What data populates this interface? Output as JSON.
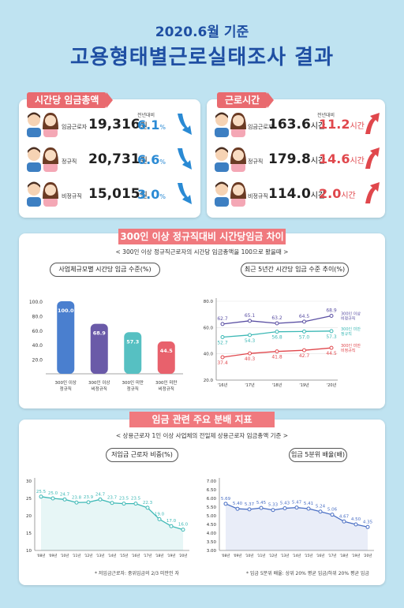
{
  "header": {
    "line1": "2020.6월 기준",
    "line2": "고용형태별근로실태조사 결과"
  },
  "wage_panel": {
    "tag": "시간당 임금총액",
    "compare_label": "전년대비",
    "rows": [
      {
        "label": "임금근로자",
        "value": "19,316",
        "unit": "원",
        "pct": "6.1",
        "pct_unit": "%"
      },
      {
        "label": "정규직",
        "value": "20,731",
        "unit": "원",
        "pct": "6.6",
        "pct_unit": "%"
      },
      {
        "label": "비정규직",
        "value": "15,015",
        "unit": "원",
        "pct": "3.0",
        "pct_unit": "%"
      }
    ]
  },
  "hours_panel": {
    "tag": "근로시간",
    "compare_label": "전년대비",
    "rows": [
      {
        "label": "임금근로자",
        "value": "163.6",
        "unit": "시간",
        "diff": "11.2",
        "diff_unit": "시간"
      },
      {
        "label": "정규직",
        "value": "179.8",
        "unit": "시간",
        "diff": "14.6",
        "diff_unit": "시간"
      },
      {
        "label": "비정규직",
        "value": "114.0",
        "unit": "시간",
        "diff": "2.0",
        "diff_unit": "시간"
      }
    ]
  },
  "section1": {
    "banner": "300인 이상 정규직대비 시간당임금 차이",
    "subtitle": "< 300인 이상 정규직근로자의 시간당 임금총액을 100으로 봤을때 >",
    "left_pill": "사업체규모별 시간당 임금 수준(%)",
    "right_pill": "최근 5년간 시간당 임금 수준 추이(%)"
  },
  "section2": {
    "banner": "임금 관련 주요 분배 지표",
    "subtitle": "< 상용근로자 1인 이상 사업체의 전일제 상용근로자 임금총액 기준 >",
    "left_pill": "저임금 근로자 비중(%)",
    "right_pill": "임금 5분위 배율(배)",
    "left_note": "* 저임금근로자: 중위임금의 2/3 미만인 자",
    "right_note": "* 임금 5분위 배율: 상위 20% 평균 임금/하위 20% 평균 임금"
  },
  "colors": {
    "red": "#e0474c",
    "blue": "#2a8ad4",
    "banner": "#f0797e",
    "title": "#1f4fa3",
    "bg": "#bfe3f1"
  },
  "chart_data": [
    {
      "type": "bar",
      "title": "사업체규모별 시간당 임금 수준(%)",
      "categories": [
        "300인 이상 정규직",
        "300인 이상 비정규직",
        "300인 미만 정규직",
        "300인 미만 비정규직"
      ],
      "values": [
        100.0,
        68.9,
        57.3,
        44.5
      ],
      "value_labels": [
        "100.0",
        "68.9",
        "57.3",
        "44.5"
      ],
      "yticks": [
        "100.0",
        "80.0",
        "60.0",
        "40.0",
        "20.0"
      ],
      "ylim": [
        0,
        100
      ],
      "colors": [
        "#4a7fcf",
        "#6a5aa8",
        "#56c0c2",
        "#e8616c"
      ]
    },
    {
      "type": "line",
      "title": "최근 5년간 시간당 임금 수준 추이(%)",
      "x": [
        "'16년",
        "'17년",
        "'18년",
        "'19년",
        "'20년"
      ],
      "yticks": [
        "80.0",
        "60.0",
        "40.0",
        "20.0"
      ],
      "ylim": [
        20,
        80
      ],
      "series": [
        {
          "name": "300인 이상 비정규직",
          "values": [
            62.7,
            65.1,
            63.2,
            64.5,
            68.9
          ],
          "labels": [
            "62.7",
            "65.1",
            "63.2",
            "64.5",
            "68.9"
          ],
          "color": "#5a4fa3"
        },
        {
          "name": "300인 미만 정규직",
          "values": [
            52.7,
            54.3,
            56.8,
            57.0,
            57.3
          ],
          "labels": [
            "52.7",
            "54.3",
            "56.8",
            "57.0",
            "57.3"
          ],
          "color": "#3cb8b5"
        },
        {
          "name": "300인 미만 비정규직",
          "values": [
            37.4,
            40.3,
            41.8,
            42.7,
            44.5
          ],
          "labels": [
            "37.4",
            "40.3",
            "41.8",
            "42.7",
            "44.5"
          ],
          "color": "#e0474c"
        }
      ]
    },
    {
      "type": "line",
      "title": "저임금 근로자 비중(%)",
      "x": [
        "'08년",
        "'09년",
        "'10년",
        "'11년",
        "'12년",
        "'13년",
        "'14년",
        "'15년",
        "'16년",
        "'17년",
        "'18년",
        "'19년",
        "'20년"
      ],
      "yticks": [
        "30",
        "25",
        "20",
        "15",
        "10"
      ],
      "ylim": [
        10,
        30
      ],
      "series": [
        {
          "values": [
            25.5,
            25.0,
            24.7,
            23.8,
            23.9,
            24.7,
            23.7,
            23.5,
            23.5,
            22.3,
            19.0,
            17.0,
            16.0
          ],
          "labels": [
            "25.5",
            "25.0",
            "24.7",
            "23.8",
            "23.9",
            "24.7",
            "23.7",
            "23.5",
            "23.5",
            "22.3",
            "19.0",
            "17.0",
            "16.0"
          ],
          "color": "#3cb8b5"
        }
      ]
    },
    {
      "type": "line",
      "title": "임금 5분위 배율(배)",
      "x": [
        "'08년",
        "'09년",
        "'10년",
        "'11년",
        "'12년",
        "'13년",
        "'14년",
        "'15년",
        "'16년",
        "'17년",
        "'18년",
        "'19년",
        "'20년"
      ],
      "yticks": [
        "7.00",
        "6.50",
        "6.00",
        "5.50",
        "5.00",
        "4.50",
        "4.00",
        "3.50",
        "3.00"
      ],
      "ylim": [
        3,
        7
      ],
      "series": [
        {
          "values": [
            5.69,
            5.4,
            5.37,
            5.45,
            5.33,
            5.43,
            5.47,
            5.41,
            5.24,
            5.06,
            4.67,
            4.5,
            4.35
          ],
          "labels": [
            "5.69",
            "5.40",
            "5.37",
            "5.45",
            "5.33",
            "5.43",
            "5.47",
            "5.41",
            "5.24",
            "5.06",
            "4.67",
            "4.50",
            "4.35"
          ],
          "color": "#4a6fc4"
        }
      ]
    }
  ]
}
